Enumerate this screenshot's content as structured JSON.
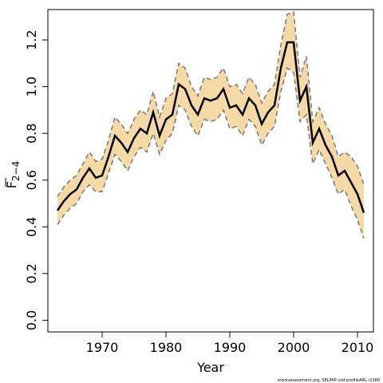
{
  "chart_data": {
    "type": "line",
    "xlabel": "Year",
    "ylabel_main": "F",
    "ylabel_sub": "2−4",
    "footer": "stockassessment.org, SELPAP-cod-profileARL r2280",
    "xlim": [
      1961.5,
      2012.5
    ],
    "ylim": [
      -0.05,
      1.33
    ],
    "x_ticks": [
      1970,
      1980,
      1990,
      2000,
      2010
    ],
    "x_tick_labels": [
      "1970",
      "1980",
      "1990",
      "2000",
      "2010"
    ],
    "y_ticks": [
      0.0,
      0.2,
      0.4,
      0.6,
      0.8,
      1.0,
      1.2
    ],
    "y_tick_labels": [
      "0.0",
      "0.2",
      "0.4",
      "0.6",
      "0.8",
      "1.0",
      "1.2"
    ],
    "grid": false,
    "colors": {
      "band": "#f5d9a6",
      "line": "#000000",
      "ci_line": "#777777"
    },
    "x": [
      1963,
      1964,
      1965,
      1966,
      1967,
      1968,
      1969,
      1970,
      1971,
      1972,
      1973,
      1974,
      1975,
      1976,
      1977,
      1978,
      1979,
      1980,
      1981,
      1982,
      1983,
      1984,
      1985,
      1986,
      1987,
      1988,
      1989,
      1990,
      1991,
      1992,
      1993,
      1994,
      1995,
      1996,
      1997,
      1998,
      1999,
      2000,
      2001,
      2002,
      2003,
      2004,
      2005,
      2006,
      2007,
      2008,
      2009,
      2010,
      2011
    ],
    "series": [
      {
        "role": "estimate",
        "values": [
          0.47,
          0.51,
          0.54,
          0.56,
          0.61,
          0.65,
          0.61,
          0.62,
          0.7,
          0.79,
          0.76,
          0.72,
          0.78,
          0.82,
          0.8,
          0.89,
          0.79,
          0.86,
          0.88,
          1.01,
          0.99,
          0.92,
          0.88,
          0.95,
          0.94,
          0.95,
          0.99,
          0.91,
          0.92,
          0.88,
          0.95,
          0.92,
          0.84,
          0.89,
          0.92,
          1.08,
          1.19,
          1.19,
          0.94,
          1.0,
          0.76,
          0.82,
          0.75,
          0.7,
          0.62,
          0.64,
          0.59,
          0.54,
          0.46
        ]
      },
      {
        "role": "upper",
        "values": [
          0.53,
          0.57,
          0.6,
          0.62,
          0.67,
          0.72,
          0.68,
          0.69,
          0.77,
          0.87,
          0.84,
          0.8,
          0.86,
          0.9,
          0.88,
          0.98,
          0.87,
          0.95,
          0.97,
          1.1,
          1.08,
          1.0,
          0.96,
          1.04,
          1.03,
          1.04,
          1.08,
          1.0,
          1.01,
          0.97,
          1.04,
          1.01,
          0.93,
          0.98,
          1.01,
          1.18,
          1.31,
          1.32,
          1.04,
          1.13,
          0.85,
          0.91,
          0.84,
          0.79,
          0.7,
          0.72,
          0.7,
          0.66,
          0.58
        ]
      },
      {
        "role": "lower",
        "values": [
          0.41,
          0.45,
          0.48,
          0.5,
          0.55,
          0.58,
          0.55,
          0.55,
          0.63,
          0.71,
          0.68,
          0.64,
          0.7,
          0.74,
          0.72,
          0.8,
          0.71,
          0.77,
          0.8,
          0.92,
          0.9,
          0.83,
          0.79,
          0.86,
          0.85,
          0.86,
          0.9,
          0.82,
          0.83,
          0.79,
          0.86,
          0.83,
          0.75,
          0.8,
          0.83,
          0.98,
          1.08,
          1.06,
          0.85,
          0.88,
          0.67,
          0.73,
          0.67,
          0.61,
          0.54,
          0.56,
          0.49,
          0.43,
          0.35
        ]
      }
    ]
  }
}
